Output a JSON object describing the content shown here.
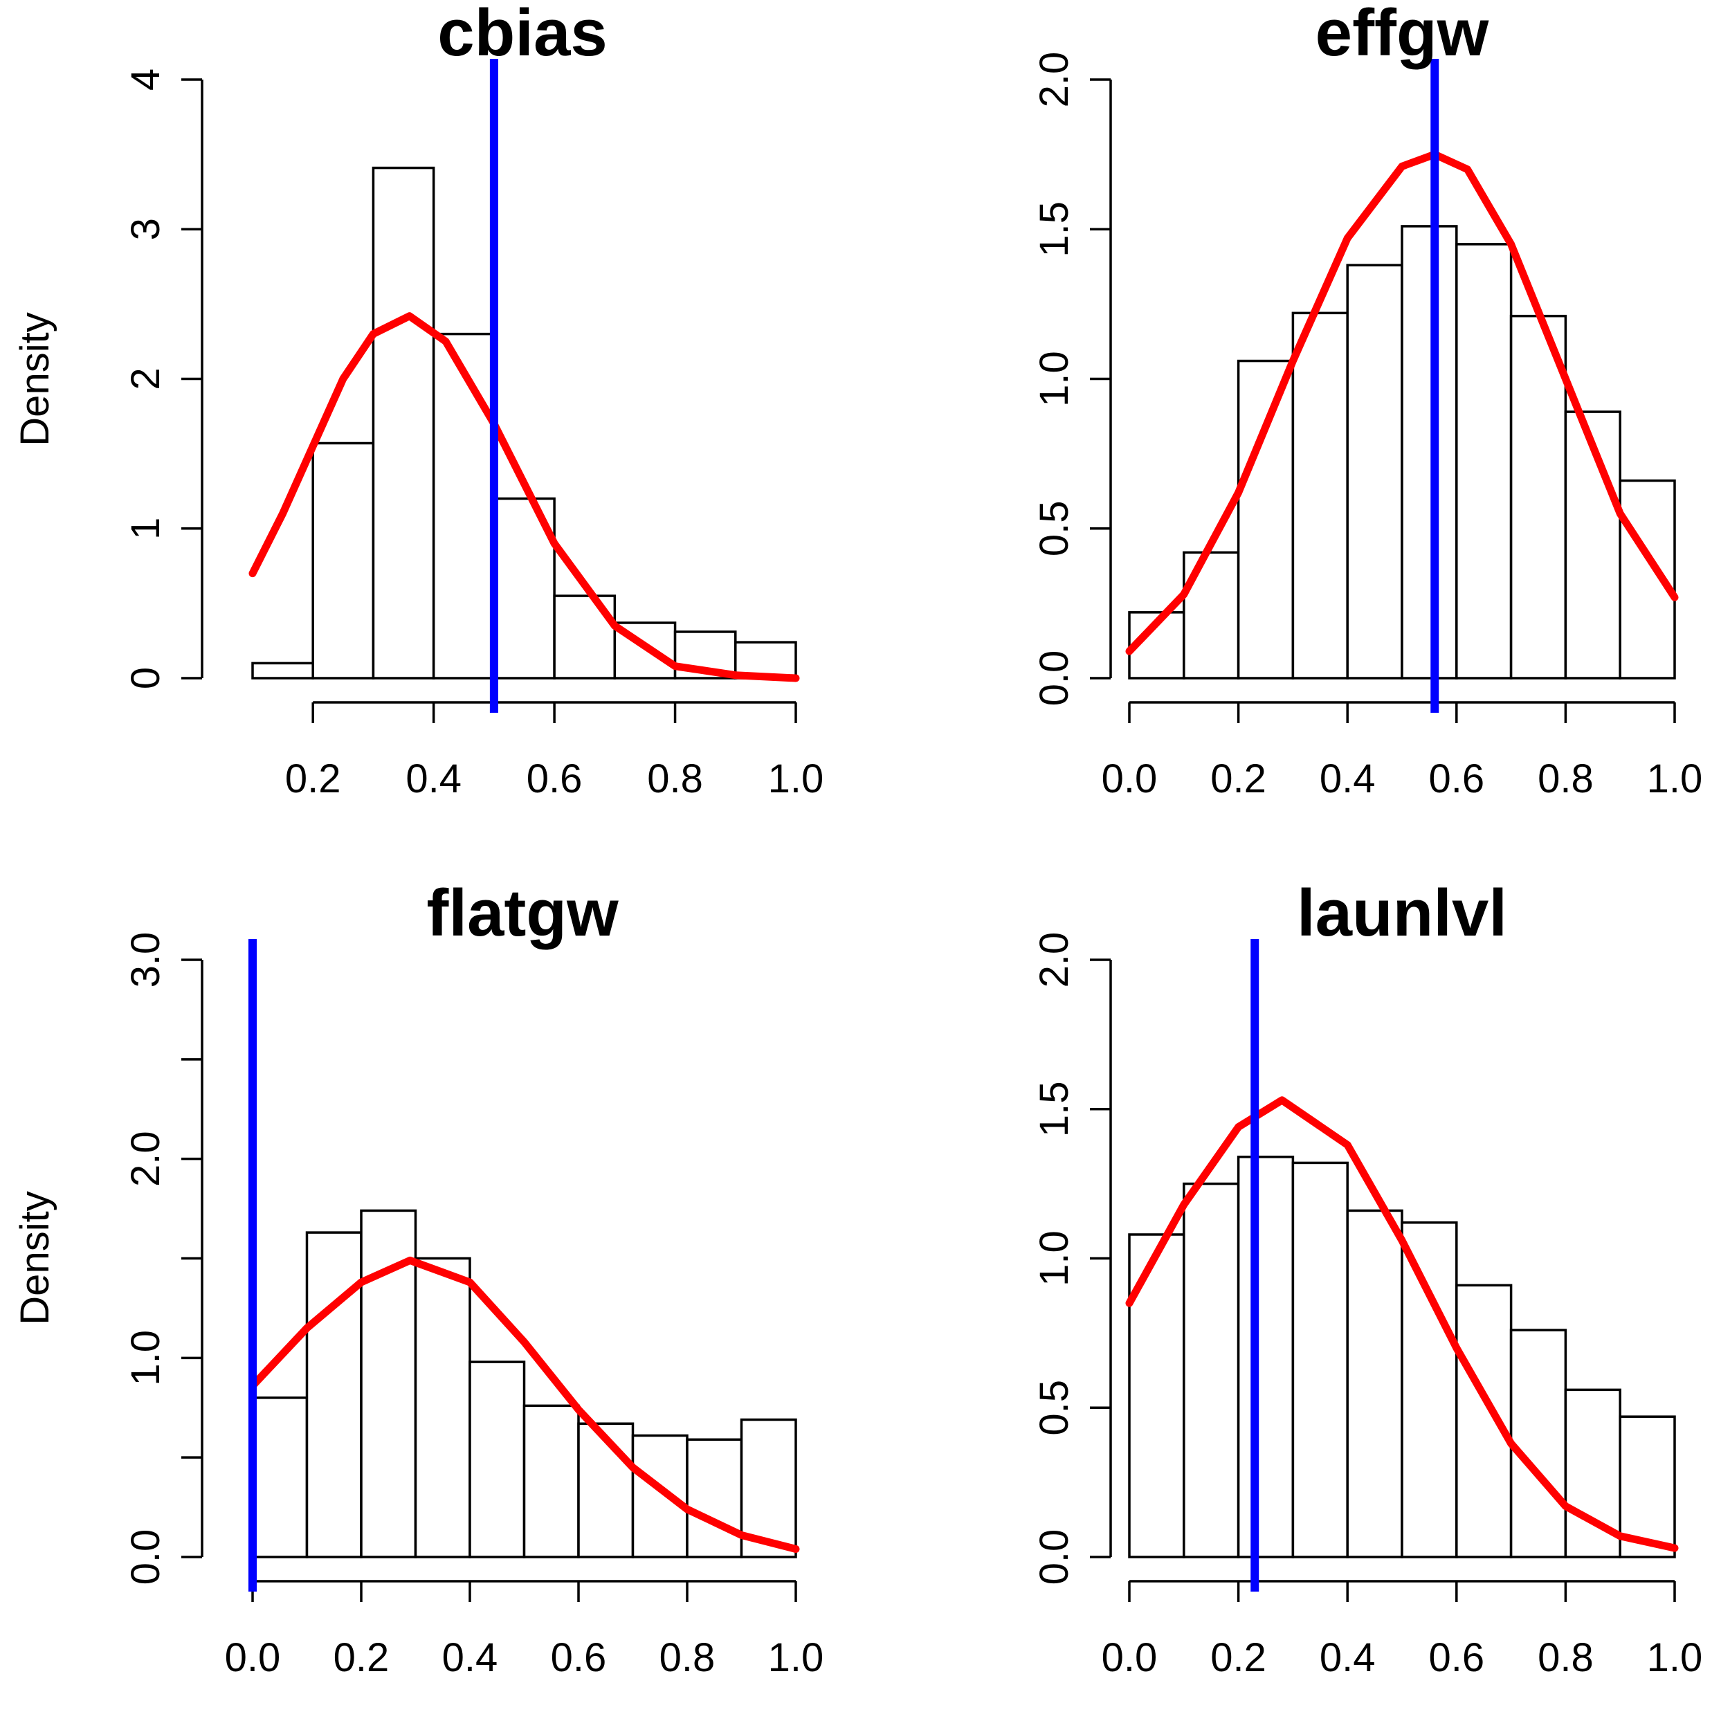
{
  "colors": {
    "curve": "#ff0000",
    "vline": "#0000ff",
    "bars": "#ffffff"
  },
  "chart_data": [
    {
      "type": "bar",
      "title": "cbias",
      "ylabel": "Density",
      "xlim": [
        0.1,
        1.0
      ],
      "ylim": [
        0,
        4
      ],
      "x_ticks": [
        "0.2",
        "0.4",
        "0.6",
        "0.8",
        "1.0"
      ],
      "y_ticks": [
        "0",
        "1",
        "2",
        "3",
        "4"
      ],
      "bin_edges": [
        0.1,
        0.2,
        0.3,
        0.4,
        0.5,
        0.6,
        0.7,
        0.8,
        0.9,
        1.0
      ],
      "values": [
        0.1,
        1.57,
        3.41,
        2.3,
        1.2,
        0.55,
        0.37,
        0.31,
        0.24
      ],
      "curve": {
        "x": [
          0.1,
          0.15,
          0.2,
          0.25,
          0.3,
          0.36,
          0.42,
          0.5,
          0.55,
          0.6,
          0.7,
          0.8,
          0.9,
          1.0
        ],
        "y": [
          0.7,
          1.1,
          1.55,
          2.0,
          2.3,
          2.42,
          2.25,
          1.7,
          1.3,
          0.9,
          0.35,
          0.08,
          0.02,
          0.0
        ]
      },
      "vline": 0.5
    },
    {
      "type": "bar",
      "title": "effgw",
      "ylabel": "",
      "xlim": [
        0.0,
        1.0
      ],
      "ylim": [
        0,
        2.0
      ],
      "x_ticks": [
        "0.0",
        "0.2",
        "0.4",
        "0.6",
        "0.8",
        "1.0"
      ],
      "y_ticks": [
        "0.0",
        "0.5",
        "1.0",
        "1.5",
        "2.0"
      ],
      "bin_edges": [
        0.0,
        0.1,
        0.2,
        0.3,
        0.4,
        0.5,
        0.6,
        0.7,
        0.8,
        0.9,
        1.0
      ],
      "values": [
        0.22,
        0.42,
        1.06,
        1.22,
        1.38,
        1.51,
        1.45,
        1.21,
        0.89,
        0.66
      ],
      "curve": {
        "x": [
          0.0,
          0.1,
          0.2,
          0.3,
          0.4,
          0.5,
          0.56,
          0.62,
          0.7,
          0.8,
          0.9,
          1.0
        ],
        "y": [
          0.09,
          0.28,
          0.62,
          1.06,
          1.47,
          1.71,
          1.75,
          1.7,
          1.45,
          1.0,
          0.55,
          0.27
        ]
      },
      "vline": 0.56
    },
    {
      "type": "bar",
      "title": "flatgw",
      "ylabel": "Density",
      "xlim": [
        0.0,
        1.0
      ],
      "ylim": [
        0,
        3.0
      ],
      "x_ticks": [
        "0.0",
        "0.2",
        "0.4",
        "0.6",
        "0.8",
        "1.0"
      ],
      "y_ticks": [
        "0.0",
        "1.0",
        "2.0",
        "3.0"
      ],
      "minor_y_ticks": [
        0.5,
        1.5,
        2.5
      ],
      "bin_edges": [
        0.0,
        0.1,
        0.2,
        0.3,
        0.4,
        0.5,
        0.6,
        0.7,
        0.8,
        0.9,
        1.0
      ],
      "values": [
        0.8,
        1.63,
        1.74,
        1.5,
        0.98,
        0.76,
        0.67,
        0.61,
        0.59,
        0.69
      ],
      "curve": {
        "x": [
          0.0,
          0.1,
          0.2,
          0.29,
          0.4,
          0.5,
          0.6,
          0.7,
          0.8,
          0.9,
          1.0
        ],
        "y": [
          0.86,
          1.15,
          1.38,
          1.49,
          1.38,
          1.08,
          0.74,
          0.45,
          0.24,
          0.11,
          0.04
        ]
      },
      "vline": 0.0
    },
    {
      "type": "bar",
      "title": "launlvl",
      "ylabel": "",
      "xlim": [
        0.0,
        1.0
      ],
      "ylim": [
        0,
        2.0
      ],
      "x_ticks": [
        "0.0",
        "0.2",
        "0.4",
        "0.6",
        "0.8",
        "1.0"
      ],
      "y_ticks": [
        "0.0",
        "0.5",
        "1.0",
        "1.5",
        "2.0"
      ],
      "bin_edges": [
        0.0,
        0.1,
        0.2,
        0.3,
        0.4,
        0.5,
        0.6,
        0.7,
        0.8,
        0.9,
        1.0
      ],
      "values": [
        1.08,
        1.25,
        1.34,
        1.32,
        1.16,
        1.12,
        0.91,
        0.76,
        0.56,
        0.47
      ],
      "curve": {
        "x": [
          0.0,
          0.1,
          0.2,
          0.28,
          0.4,
          0.5,
          0.6,
          0.7,
          0.8,
          0.9,
          1.0
        ],
        "y": [
          0.85,
          1.18,
          1.44,
          1.53,
          1.38,
          1.06,
          0.7,
          0.38,
          0.17,
          0.07,
          0.03
        ]
      },
      "vline": 0.23
    }
  ]
}
